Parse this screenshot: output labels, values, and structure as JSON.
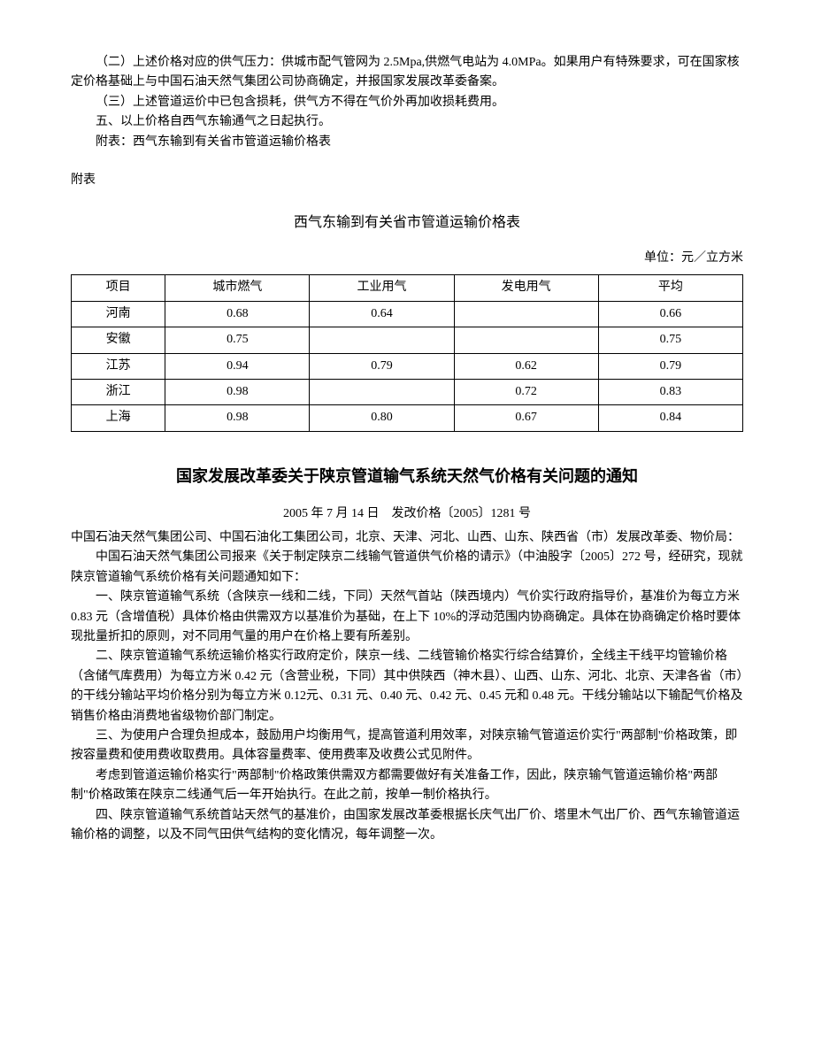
{
  "intro": {
    "p1": "（二）上述价格对应的供气压力：供城市配气管网为 2.5Mpa,供燃气电站为 4.0MPa。如果用户有特殊要求，可在国家核定价格基础上与中国石油天然气集团公司协商确定，并报国家发展改革委备案。",
    "p2": "（三）上述管道运价中已包含损耗，供气方不得在气价外再加收损耗费用。",
    "p3": "五、以上价格自西气东输通气之日起执行。",
    "p4": "附表：西气东输到有关省市管道运输价格表"
  },
  "attachment_label": "附表",
  "table": {
    "title": "西气东输到有关省市管道运输价格表",
    "unit": "单位：元／立方米",
    "columns": [
      "项目",
      "城市燃气",
      "工业用气",
      "发电用气",
      "平均"
    ],
    "rows": [
      {
        "region": "河南",
        "city": "0.68",
        "industry": "0.64",
        "power": "",
        "avg": "0.66"
      },
      {
        "region": "安徽",
        "city": "0.75",
        "industry": "",
        "power": "",
        "avg": "0.75"
      },
      {
        "region": "江苏",
        "city": "0.94",
        "industry": "0.79",
        "power": "0.62",
        "avg": "0.79"
      },
      {
        "region": "浙江",
        "city": "0.98",
        "industry": "",
        "power": "0.72",
        "avg": "0.83"
      },
      {
        "region": "上海",
        "city": "0.98",
        "industry": "0.80",
        "power": "0.67",
        "avg": "0.84"
      }
    ]
  },
  "notice": {
    "title": "国家发展改革委关于陕京管道输气系统天然气价格有关问题的通知",
    "meta": "2005 年 7 月 14 日　发改价格〔2005〕1281 号",
    "addressee": "中国石油天然气集团公司、中国石油化工集团公司，北京、天津、河北、山西、山东、陕西省（市）发展改革委、物价局：",
    "p1": "中国石油天然气集团公司报来《关于制定陕京二线输气管道供气价格的请示》（中油股字〔2005〕272 号，经研究，现就陕京管道输气系统价格有关问题通知如下：",
    "p2": "一、陕京管道输气系统（含陕京一线和二线，下同）天然气首站（陕西境内）气价实行政府指导价，基准价为每立方米 0.83 元（含增值税）具体价格由供需双方以基准价为基础，在上下 10%的浮动范围内协商确定。具体在协商确定价格时要体现批量折扣的原则，对不同用气量的用户在价格上要有所差别。",
    "p3": "二、陕京管道输气系统运输价格实行政府定价，陕京一线、二线管输价格实行综合结算价，全线主干线平均管输价格（含储气库费用）为每立方米 0.42 元（含营业税，下同）其中供陕西（神木县）、山西、山东、河北、北京、天津各省（市）的干线分输站平均价格分别为每立方米 0.12元、0.31 元、0.40 元、0.42 元、0.45 元和 0.48 元。干线分输站以下输配气价格及销售价格由消费地省级物价部门制定。",
    "p4": "三、为使用户合理负担成本，鼓励用户均衡用气，提高管道利用效率，对陕京输气管道运价实行\"两部制\"价格政策，即按容量费和使用费收取费用。具体容量费率、使用费率及收费公式见附件。",
    "p5": "考虑到管道运输价格实行\"两部制\"价格政策供需双方都需要做好有关准备工作，因此，陕京输气管道运输价格\"两部制\"价格政策在陕京二线通气后一年开始执行。在此之前，按单一制价格执行。",
    "p6": "四、陕京管道输气系统首站天然气的基准价，由国家发展改革委根据长庆气出厂价、塔里木气出厂价、西气东输管道运输价格的调整，以及不同气田供气结构的变化情况，每年调整一次。"
  }
}
